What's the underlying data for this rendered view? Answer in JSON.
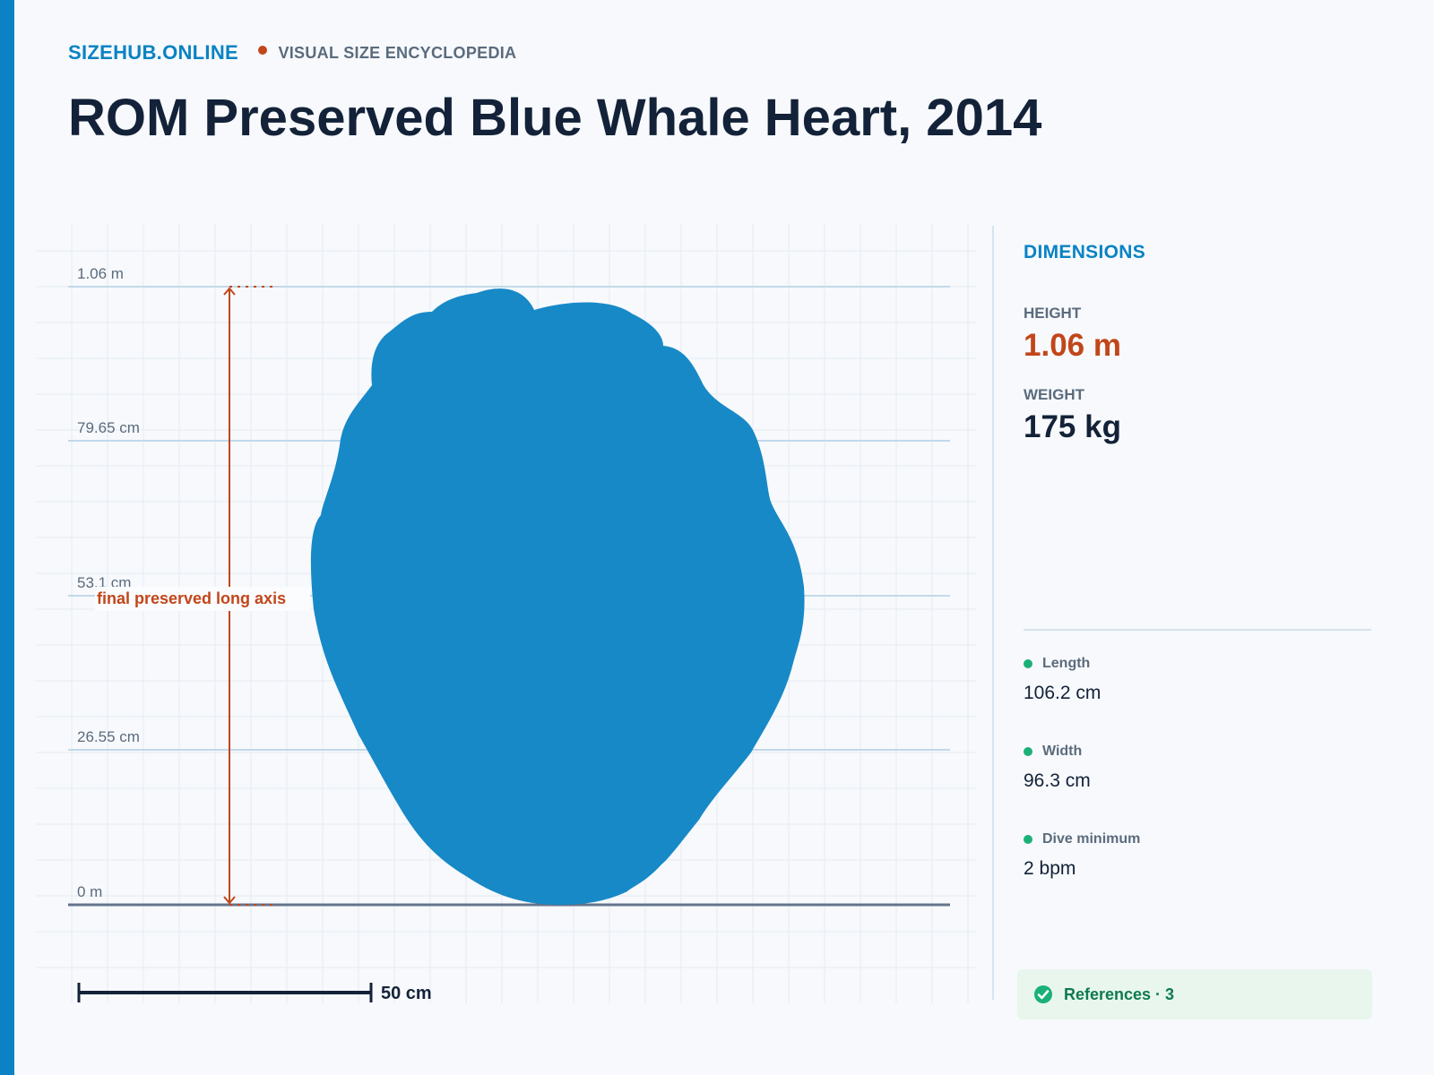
{
  "site": {
    "brand": "SIZEHUB.ONLINE",
    "tagline": "VISUAL SIZE ENCYCLOPEDIA",
    "accent_color": "#0a82c4",
    "secondary_accent": "#c2461a"
  },
  "page": {
    "title": "ROM Preserved Blue Whale Heart, 2014"
  },
  "figure": {
    "tick_labels": [
      "1.06 m",
      "79.65 cm",
      "53.1 cm",
      "26.55 cm",
      "0 m"
    ],
    "measure_label": "final preserved long axis",
    "scale_bar_label": "50 cm",
    "silhouette_color": "#1789c7",
    "measure_color": "#c2461a",
    "icons": [
      "arrow-up-icon",
      "arrow-down-icon",
      "heart-silhouette"
    ]
  },
  "panel": {
    "heading": "DIMENSIONS",
    "height_label": "HEIGHT",
    "height_value": "1.06 m",
    "weight_label": "WEIGHT",
    "weight_value": "175 kg",
    "specs": [
      {
        "label": "Length",
        "value": "106.2 cm"
      },
      {
        "label": "Width",
        "value": "96.3 cm"
      },
      {
        "label": "Dive minimum",
        "value": "2 bpm"
      }
    ],
    "references_label": "References · 3",
    "references_icon": "check-circle-icon"
  }
}
